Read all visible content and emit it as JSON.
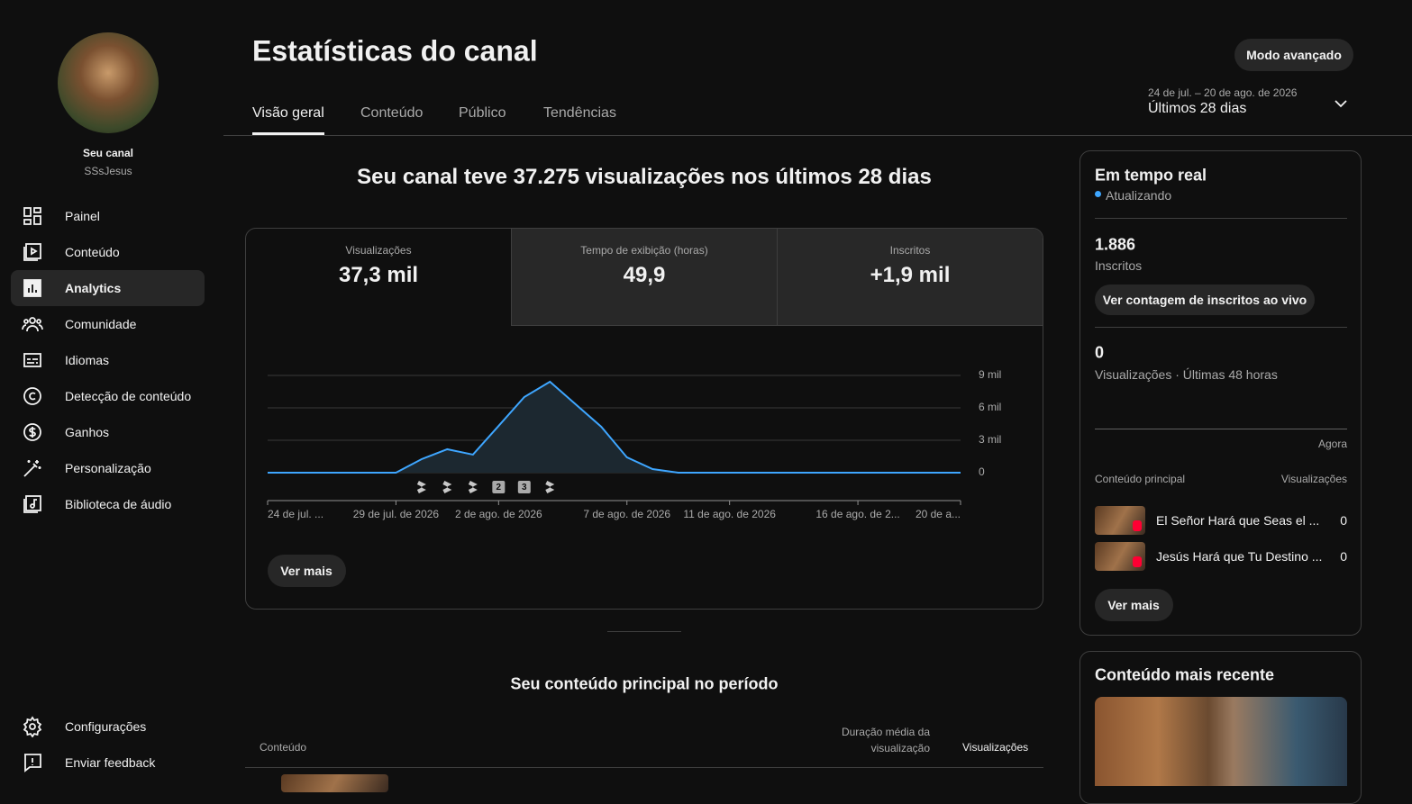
{
  "sidebar": {
    "channel_label": "Seu canal",
    "channel_name": "SSsJesus",
    "nav": [
      "Painel",
      "Conteúdo",
      "Analytics",
      "Comunidade",
      "Idiomas",
      "Detecção de conteúdo",
      "Ganhos",
      "Personalização",
      "Biblioteca de áudio"
    ],
    "bottom": [
      "Configurações",
      "Enviar feedback"
    ]
  },
  "header": {
    "title": "Estatísticas do canal",
    "button": "Modo avançado",
    "tabs": [
      "Visão geral",
      "Conteúdo",
      "Público",
      "Tendências"
    ],
    "date_range": "24 de jul. – 20 de ago. de 2026",
    "period": "Últimos 28 dias"
  },
  "summary": "Seu canal teve 37.275 visualizações nos últimos 28 dias",
  "metrics": [
    {
      "label": "Visualizações",
      "value": "37,3 mil"
    },
    {
      "label": "Tempo de exibição (horas)",
      "value": "49,9"
    },
    {
      "label": "Inscritos",
      "value": "+1,9 mil"
    }
  ],
  "chart_data": {
    "type": "line",
    "categories": [
      "24 de jul. ...",
      null,
      null,
      null,
      null,
      "29 de jul. de 2026",
      null,
      null,
      null,
      "2 de ago. de 2026",
      null,
      null,
      null,
      null,
      "7 de ago. de 2026",
      null,
      null,
      null,
      "11 de ago. de 2026",
      null,
      null,
      null,
      null,
      "16 de ago. de 2...",
      null,
      null,
      null,
      "20 de a..."
    ],
    "values": [
      0,
      0,
      0,
      0,
      0,
      0,
      1250,
      2170,
      1670,
      4330,
      7000,
      8420,
      6330,
      4250,
      1420,
      330,
      0,
      0,
      0,
      0,
      0,
      0,
      0,
      0,
      0,
      0,
      0,
      0
    ],
    "color": "#3ea6ff",
    "ylim": [
      0,
      9000
    ],
    "yticks": [
      0,
      {
        "value": 3000,
        "label": "3 mil"
      },
      {
        "value": 6000,
        "label": "6 mil"
      },
      {
        "value": 9000,
        "label": "9 mil"
      }
    ],
    "grid": true,
    "event_badges": [
      "2",
      "3"
    ]
  },
  "more_button": "Ver mais",
  "top_content": {
    "title": "Seu conteúdo principal no período",
    "columns": [
      "Conteúdo",
      "Duração média da visualização",
      "Visualizações"
    ]
  },
  "realtime": {
    "title": "Em tempo real",
    "status": "Atualizando",
    "subscribers": "1.886",
    "subscribers_label": "Inscritos",
    "live_button": "Ver contagem de inscritos ao vivo",
    "views": "0",
    "views_label": "Visualizações · Últimas 48 horas",
    "now": "Agora",
    "list_header": [
      "Conteúdo principal",
      "Visualizações"
    ],
    "items": [
      {
        "title": "El Señor Hará que Seas el ...",
        "views": "0"
      },
      {
        "title": "Jesús Hará que Tu Destino ...",
        "views": "0"
      }
    ],
    "more_button": "Ver mais"
  },
  "latest": {
    "title": "Conteúdo mais recente"
  }
}
